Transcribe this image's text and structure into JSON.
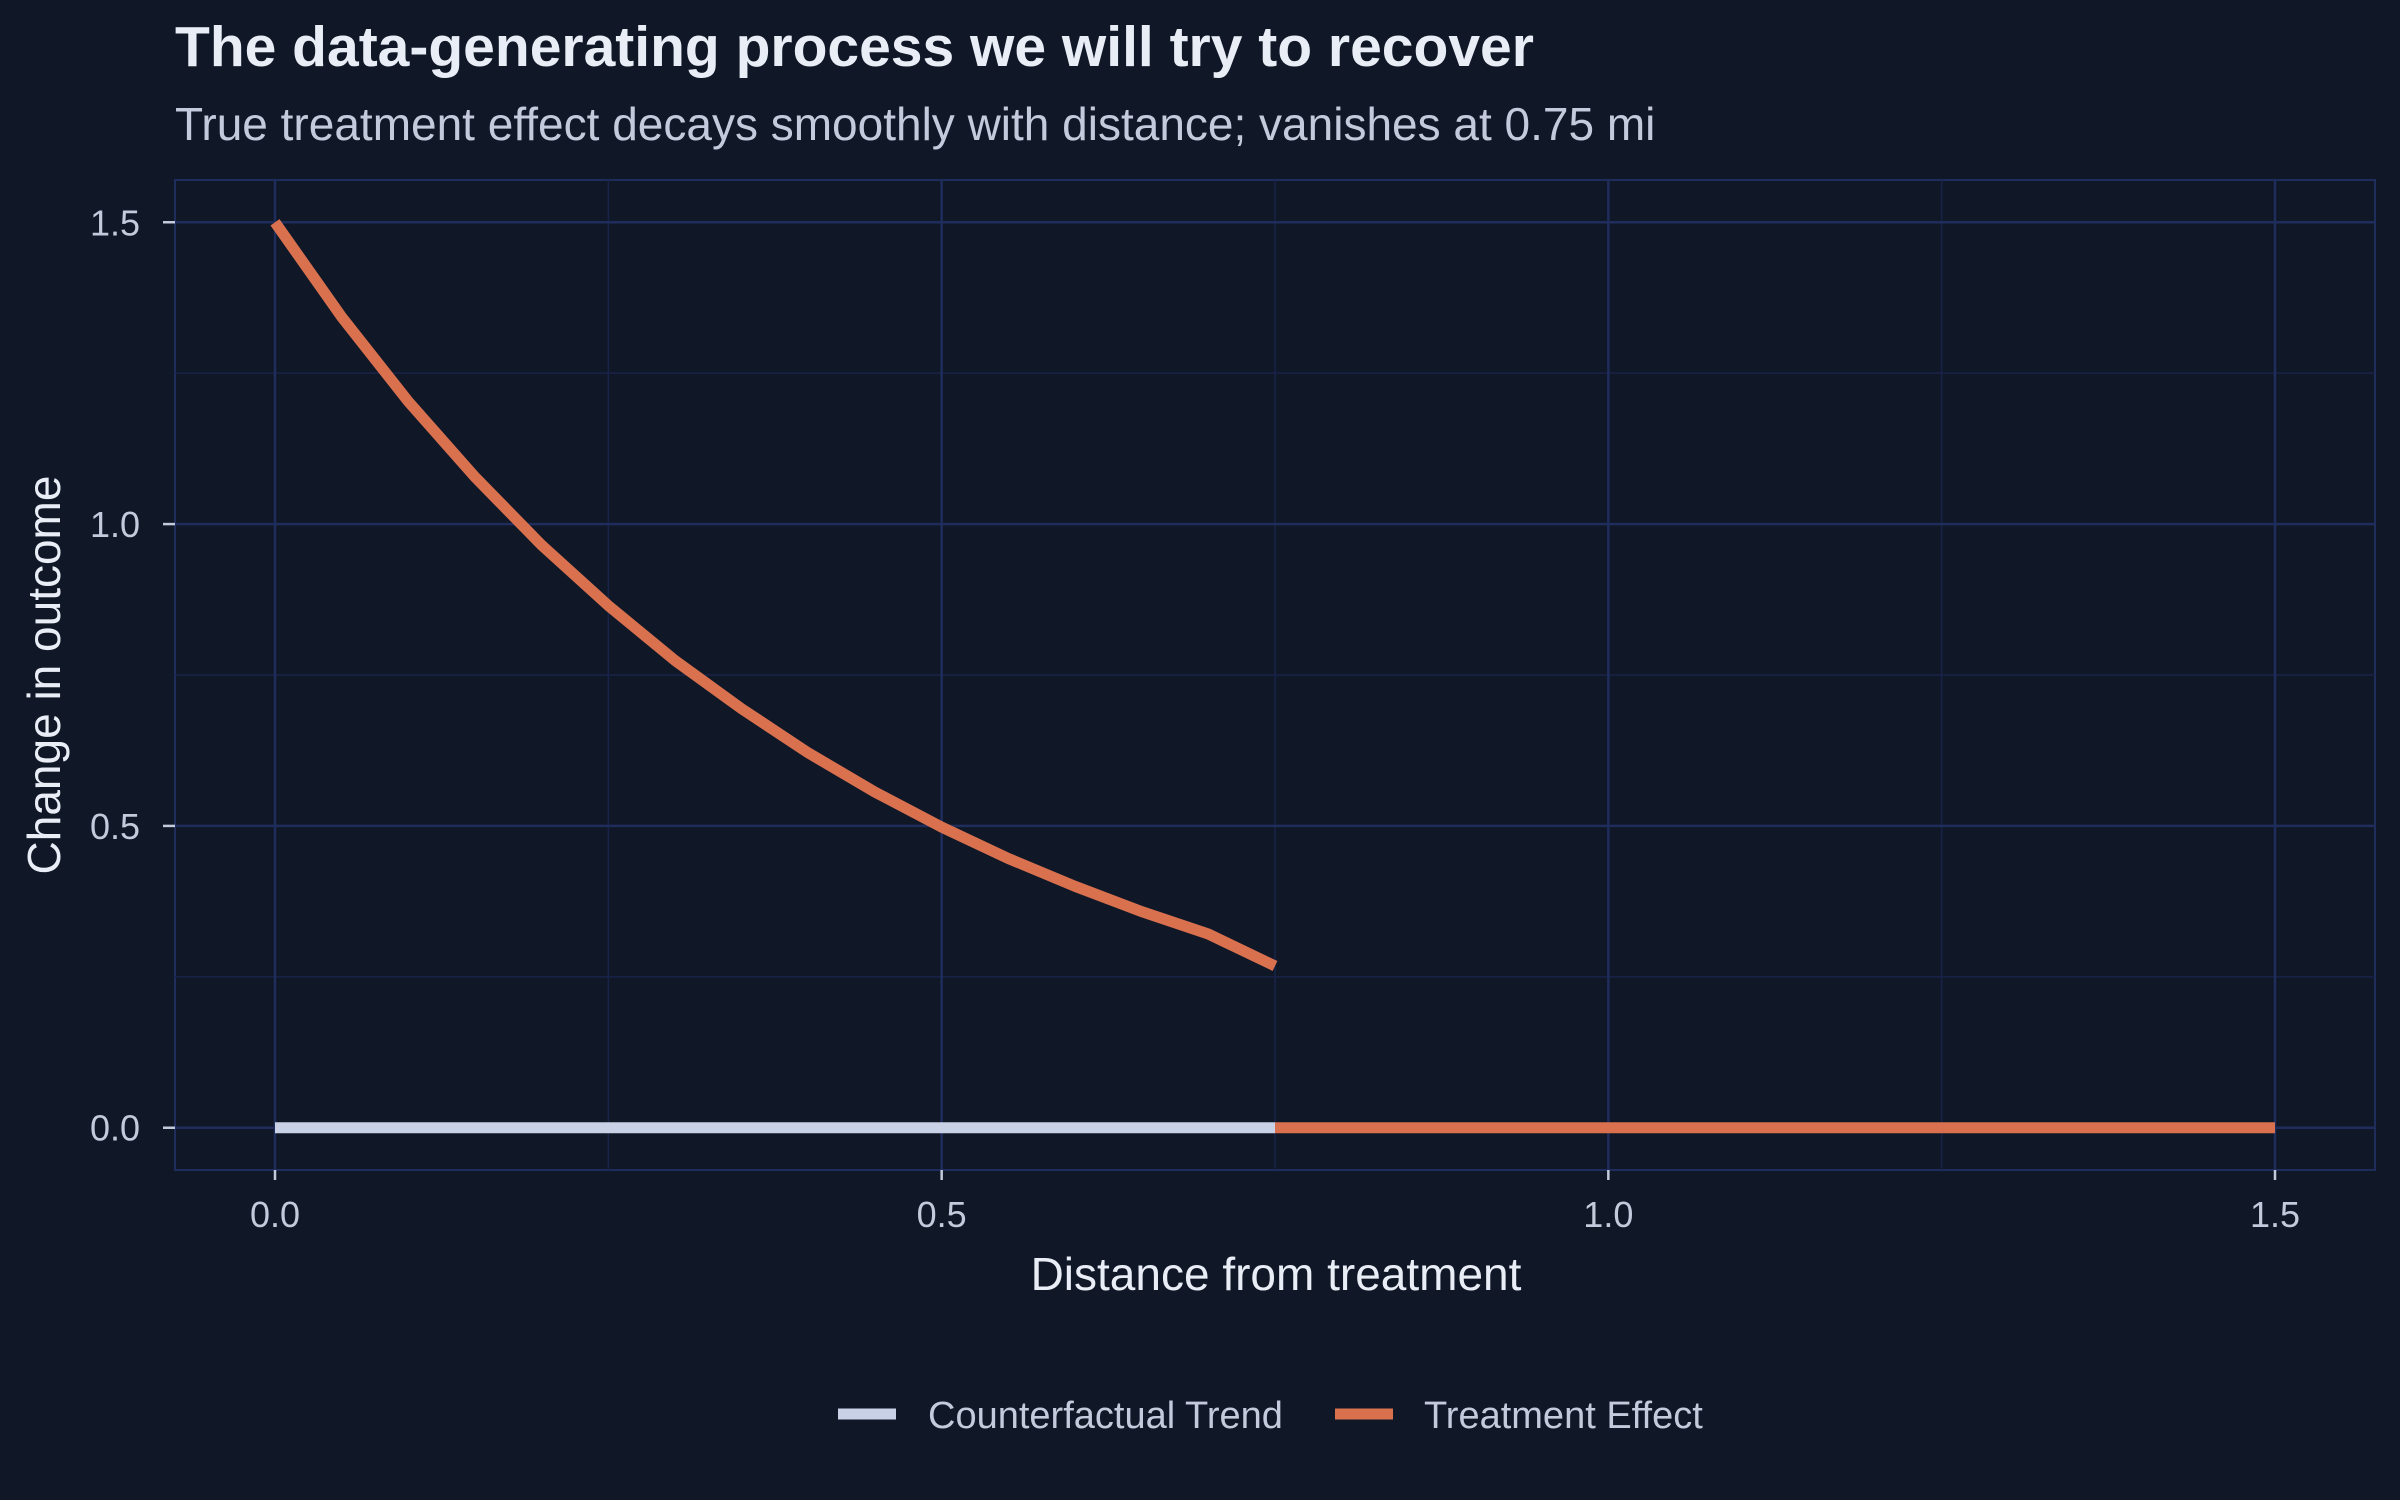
{
  "chart_data": {
    "type": "line",
    "title": "The data-generating process we will try to recover",
    "subtitle": "True treatment effect decays smoothly with distance; vanishes at 0.75 mi",
    "xlabel": "Distance from treatment",
    "ylabel": "Change in outcome",
    "xlim": [
      -0.075,
      1.575
    ],
    "ylim": [
      -0.07,
      1.57
    ],
    "x_ticks": [
      0.0,
      0.5,
      1.0,
      1.5
    ],
    "x_tick_labels": [
      "0.0",
      "0.5",
      "1.0",
      "1.5"
    ],
    "y_ticks": [
      0.0,
      0.5,
      1.0,
      1.5
    ],
    "y_tick_labels": [
      "0.0",
      "0.5",
      "1.0",
      "1.5"
    ],
    "grid": true,
    "legend_position": "bottom",
    "colors": {
      "background": "#101727",
      "grid_major": "#1f2d5c",
      "grid_minor": "#18234a",
      "counterfactual": "#c8d1e6",
      "treatment": "#d9714f"
    },
    "series": [
      {
        "name": "Counterfactual Trend",
        "color": "#c8d1e6",
        "x": [
          0.0,
          0.75
        ],
        "y": [
          0.0,
          0.0
        ]
      },
      {
        "name": "Treatment Effect",
        "color": "#d9714f",
        "x": [
          0.0,
          0.05,
          0.1,
          0.15,
          0.2,
          0.25,
          0.3,
          0.35,
          0.4,
          0.45,
          0.5,
          0.55,
          0.6,
          0.65,
          0.7,
          0.75
        ],
        "y": [
          1.5,
          1.343,
          1.203,
          1.078,
          0.965,
          0.865,
          0.774,
          0.694,
          0.621,
          0.556,
          0.498,
          0.446,
          0.4,
          0.358,
          0.321,
          0.268
        ]
      },
      {
        "name": "Treatment Effect",
        "color": "#d9714f",
        "x": [
          0.75,
          1.5
        ],
        "y": [
          0.0,
          0.0
        ]
      }
    ]
  }
}
